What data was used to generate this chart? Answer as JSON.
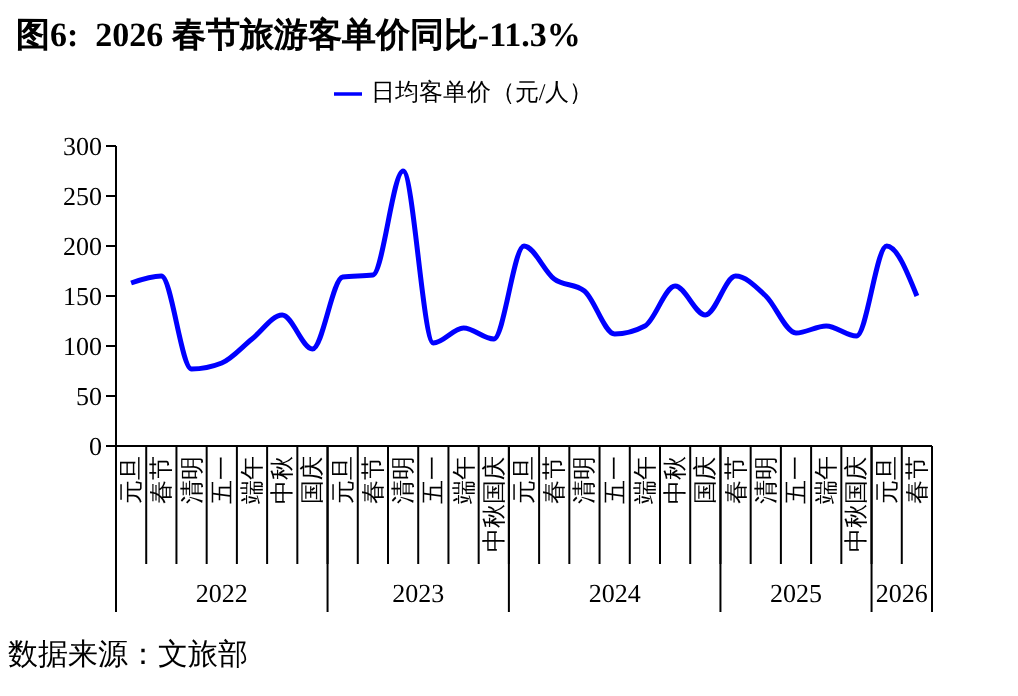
{
  "chart_data": {
    "type": "line",
    "title": "图6:  2026 春节旅游客单价同比-11.3%",
    "categories": [
      "元旦",
      "春节",
      "清明",
      "五一",
      "端午",
      "中秋",
      "国庆",
      "元旦",
      "春节",
      "清明",
      "五一",
      "端午",
      "中秋国庆",
      "元旦",
      "春节",
      "清明",
      "五一",
      "端午",
      "中秋",
      "国庆",
      "春节",
      "清明",
      "五一",
      "端午",
      "中秋国庆",
      "元旦",
      "春节"
    ],
    "series": [
      {
        "name": "日均客单价（元/人）",
        "color": "#0000ff",
        "values": [
          163,
          170,
          77,
          83,
          107,
          131,
          97,
          169,
          171,
          275,
          103,
          118,
          107,
          200,
          167,
          155,
          112,
          120,
          160,
          131,
          170,
          150,
          113,
          120,
          110,
          200,
          150
        ]
      }
    ],
    "ylim": [
      0,
      300
    ],
    "yticks": [
      0,
      50,
      100,
      150,
      200,
      250,
      300
    ],
    "legend": "top",
    "marker": "none",
    "line_style": "solid",
    "annotations": [
      "2022",
      "2023",
      "2024",
      "2025",
      "2026",
      "数据来源：文旅部"
    ]
  }
}
